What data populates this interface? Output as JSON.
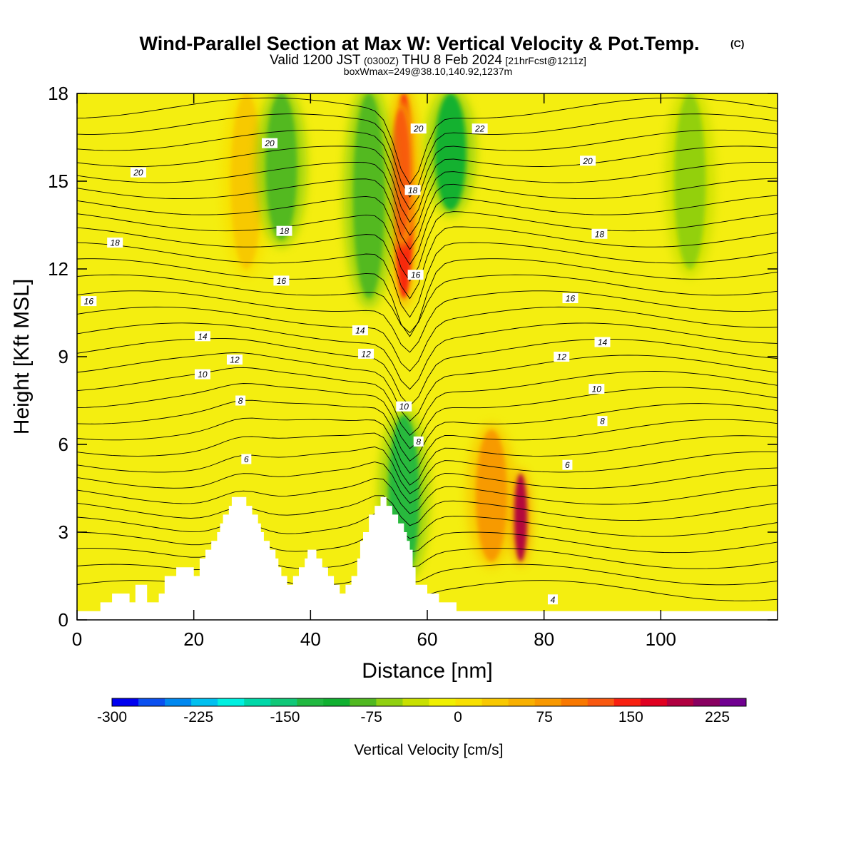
{
  "chart_data": {
    "type": "heatmap",
    "title": "Wind-Parallel Section at Max W: Vertical Velocity & Pot.Temp.",
    "title_mark": "(C)",
    "subtitle": {
      "part1": "Valid 1200 JST",
      "part2": "(0300Z)",
      "part3": "THU 8 Feb 2024",
      "part4": "[21hrFcst@1211z]"
    },
    "subtitle2": "boxWmax=249@38.10,140.92,1237m",
    "xlabel": "Distance [nm]",
    "ylabel": "Height [Kft MSL]",
    "xlim": [
      0,
      120
    ],
    "ylim": [
      0,
      18
    ],
    "xticks": [
      0,
      20,
      40,
      60,
      80,
      100
    ],
    "xtick_labels": [
      "0",
      "20",
      "40",
      "60",
      "80",
      "100"
    ],
    "yticks": [
      0,
      3,
      6,
      9,
      12,
      15,
      18
    ],
    "ytick_labels": [
      "0",
      "3",
      "6",
      "9",
      "12",
      "15",
      "18"
    ],
    "grid": false,
    "field": "Vertical Velocity",
    "colorbar": {
      "title": "Vertical Velocity [cm/s]",
      "min": -300,
      "max": 250,
      "step": 25,
      "tick_values": [
        -300,
        -225,
        -150,
        -75,
        0,
        75,
        150,
        225
      ],
      "tick_labels": [
        "-300",
        "-225",
        "-150",
        "-75",
        "0",
        "75",
        "150",
        "225"
      ],
      "colors": [
        "#0000f0",
        "#0a50f0",
        "#0088f0",
        "#00c0f0",
        "#00f0e0",
        "#00d8a8",
        "#10c878",
        "#20b840",
        "#10b030",
        "#50b820",
        "#90d010",
        "#c8e000",
        "#f0f000",
        "#f8e000",
        "#f8c800",
        "#f8b000",
        "#f89800",
        "#f87800",
        "#f85810",
        "#f82010",
        "#e00020",
        "#b00040",
        "#880060",
        "#700090"
      ]
    },
    "vertical_velocity_features": [
      {
        "x": 56,
        "z_bottom": 11,
        "z_top": 18,
        "w": 180
      },
      {
        "x": 55.5,
        "z_bottom": 13,
        "z_top": 17.5,
        "w": 150
      },
      {
        "x": 29,
        "z_bottom": 12,
        "z_top": 18,
        "w": 60
      },
      {
        "x": 71,
        "z_bottom": 2,
        "z_top": 6.5,
        "w": 120
      },
      {
        "x": 76,
        "z_bottom": 2,
        "z_top": 5,
        "w": 249
      },
      {
        "x": 56,
        "z_bottom": 1.5,
        "z_top": 7,
        "w": -110
      },
      {
        "x": 64,
        "z_bottom": 14,
        "z_top": 18,
        "w": -90
      },
      {
        "x": 50,
        "z_bottom": 11,
        "z_top": 18,
        "w": -60
      },
      {
        "x": 35,
        "z_bottom": 13,
        "z_top": 18,
        "w": -60
      },
      {
        "x": 105,
        "z_bottom": 12,
        "z_top": 18,
        "w": -50
      }
    ],
    "theta_contour_labels": [
      {
        "text": "20",
        "x": 10.5,
        "y": 15.3
      },
      {
        "text": "20",
        "x": 33,
        "y": 16.3
      },
      {
        "text": "20",
        "x": 58.5,
        "y": 16.8
      },
      {
        "text": "22",
        "x": 69,
        "y": 16.8
      },
      {
        "text": "20",
        "x": 87.5,
        "y": 15.7
      },
      {
        "text": "18",
        "x": 6.5,
        "y": 12.9
      },
      {
        "text": "18",
        "x": 35.5,
        "y": 13.3
      },
      {
        "text": "18",
        "x": 57.5,
        "y": 14.7
      },
      {
        "text": "18",
        "x": 89.5,
        "y": 13.2
      },
      {
        "text": "16",
        "x": 2,
        "y": 10.9
      },
      {
        "text": "16",
        "x": 35,
        "y": 11.6
      },
      {
        "text": "16",
        "x": 58,
        "y": 11.8
      },
      {
        "text": "16",
        "x": 84.5,
        "y": 11
      },
      {
        "text": "14",
        "x": 21.5,
        "y": 9.7
      },
      {
        "text": "14",
        "x": 48.5,
        "y": 9.9
      },
      {
        "text": "14",
        "x": 90,
        "y": 9.5
      },
      {
        "text": "12",
        "x": 27,
        "y": 8.9
      },
      {
        "text": "12",
        "x": 49.5,
        "y": 9.1
      },
      {
        "text": "12",
        "x": 83,
        "y": 9
      },
      {
        "text": "10",
        "x": 21.5,
        "y": 8.4
      },
      {
        "text": "10",
        "x": 56,
        "y": 7.3
      },
      {
        "text": "10",
        "x": 89,
        "y": 7.9
      },
      {
        "text": "8",
        "x": 28,
        "y": 7.5
      },
      {
        "text": "8",
        "x": 58.5,
        "y": 6.1
      },
      {
        "text": "8",
        "x": 90,
        "y": 6.8
      },
      {
        "text": "6",
        "x": 29,
        "y": 5.5
      },
      {
        "text": "6",
        "x": 84,
        "y": 5.3
      },
      {
        "text": "4",
        "x": 81.5,
        "y": 0.7
      }
    ]
  }
}
